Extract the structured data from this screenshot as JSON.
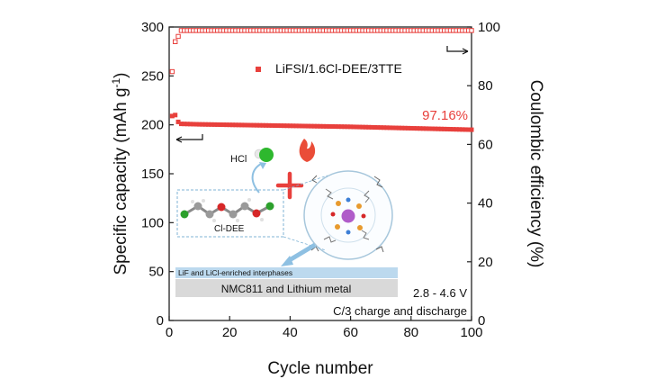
{
  "chart_data": {
    "type": "scatter",
    "xlabel": "Cycle number",
    "ylabel_left": "Specific capacity (mAh g",
    "ylabel_left_sup": "-1",
    "ylabel_left_tail": ")",
    "ylabel_right": "Coulombic efficiency (%)",
    "xlim": [
      0,
      100
    ],
    "ylim_left": [
      0,
      300
    ],
    "ylim_right": [
      0,
      100
    ],
    "x_ticks": [
      "0",
      "20",
      "40",
      "60",
      "80",
      "100"
    ],
    "y_left_ticks": [
      "0",
      "50",
      "100",
      "150",
      "200",
      "250",
      "300"
    ],
    "y_right_ticks": [
      "0",
      "20",
      "40",
      "60",
      "80",
      "100"
    ],
    "series": [
      {
        "name": "LiFSI/1.6Cl-DEE/3TTE",
        "axis": "left",
        "marker": "filled-square",
        "color": "#e8403c",
        "start_values": [
          [
            1,
            209
          ],
          [
            2,
            210
          ],
          [
            3,
            203
          ]
        ],
        "trend": [
          [
            4,
            201
          ],
          [
            10,
            200.5
          ],
          [
            20,
            200
          ],
          [
            40,
            199
          ],
          [
            60,
            198
          ],
          [
            80,
            196.5
          ],
          [
            100,
            195
          ]
        ]
      },
      {
        "name": "Coulombic efficiency",
        "axis": "right",
        "marker": "hollow-square",
        "color": "#e8403c",
        "start_values": [
          [
            1,
            84.8
          ],
          [
            2,
            95.0
          ],
          [
            3,
            96.8
          ]
        ],
        "trend": [
          [
            4,
            98.8
          ],
          [
            100,
            98.8
          ]
        ]
      }
    ],
    "legend": {
      "label": "LiFSI/1.6Cl-DEE/3TTE",
      "placement": "top-center"
    },
    "annotations": {
      "retention": "97.16%",
      "voltage": "2.8 - 4.6 V",
      "rate": "C/3 charge and discharge",
      "hcl": "HCl",
      "molecule": "Cl-DEE",
      "interphase": "LiF and LiCl-enriched interphases",
      "electrode": "NMC811 and Lithium metal"
    }
  },
  "colors": {
    "data": "#e8403c",
    "retention_text": "#e8403c",
    "interphase_fill": "#bcd9ee",
    "electrode_fill": "#d9d9d9",
    "dashed_box": "#7fb3d5",
    "arrow": "#8ec0e2"
  }
}
